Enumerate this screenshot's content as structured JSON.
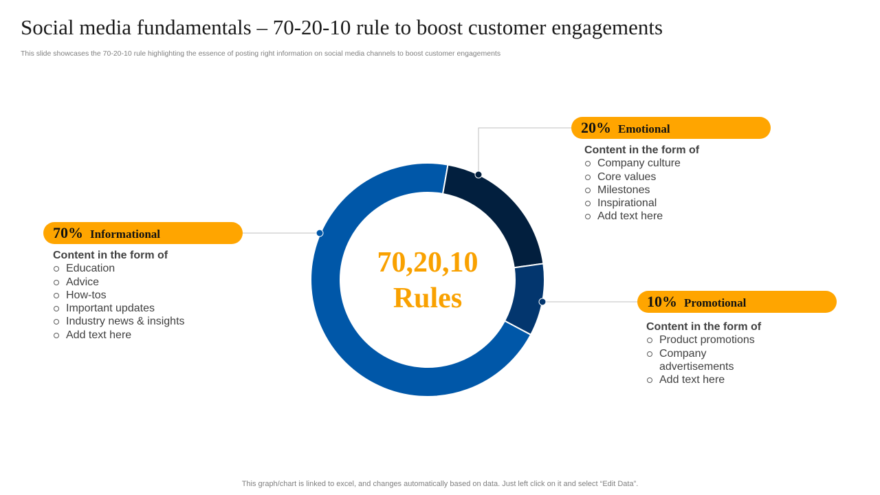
{
  "slide": {
    "title": "Social media fundamentals – 70-20-10 rule to boost customer engagements",
    "subtitle": "This slide showcases the 70-20-10 rule highlighting the essence of posting right information on social media channels to boost customer engagements",
    "footer": "This graph/chart is linked to excel,  and changes automatically based on data. Just left click on it and select “Edit Data”."
  },
  "center": {
    "line1": "70,20,10",
    "line2": "Rules"
  },
  "colors": {
    "accent": "#FFA500",
    "center_text": "#F9A100",
    "informational": "#0057A8",
    "emotional": "#021F3E",
    "promotional": "#03366E",
    "connector": "#BFBFBF"
  },
  "chart_data": {
    "type": "pie",
    "donut": true,
    "categories": [
      "Informational",
      "Emotional",
      "Promotional"
    ],
    "values": [
      70,
      20,
      10
    ],
    "colors": [
      "#0057A8",
      "#021F3E",
      "#03366E"
    ]
  },
  "callouts": [
    {
      "key": "informational",
      "pct": "70%",
      "label": "Informational",
      "heading": "Content in the form of",
      "items": [
        "Education",
        "Advice",
        "How-tos",
        "Important  updates",
        "Industry  news & insights",
        "Add text here"
      ]
    },
    {
      "key": "emotional",
      "pct": "20%",
      "label": "Emotional",
      "heading": "Content in the form of",
      "items": [
        "Company culture",
        "Core values",
        "Milestones",
        "Inspirational",
        "Add text here"
      ]
    },
    {
      "key": "promotional",
      "pct": "10%",
      "label": "Promotional",
      "heading": "Content in the form of",
      "items": [
        "Product promotions",
        "Company advertisements",
        "Add text here"
      ]
    }
  ]
}
